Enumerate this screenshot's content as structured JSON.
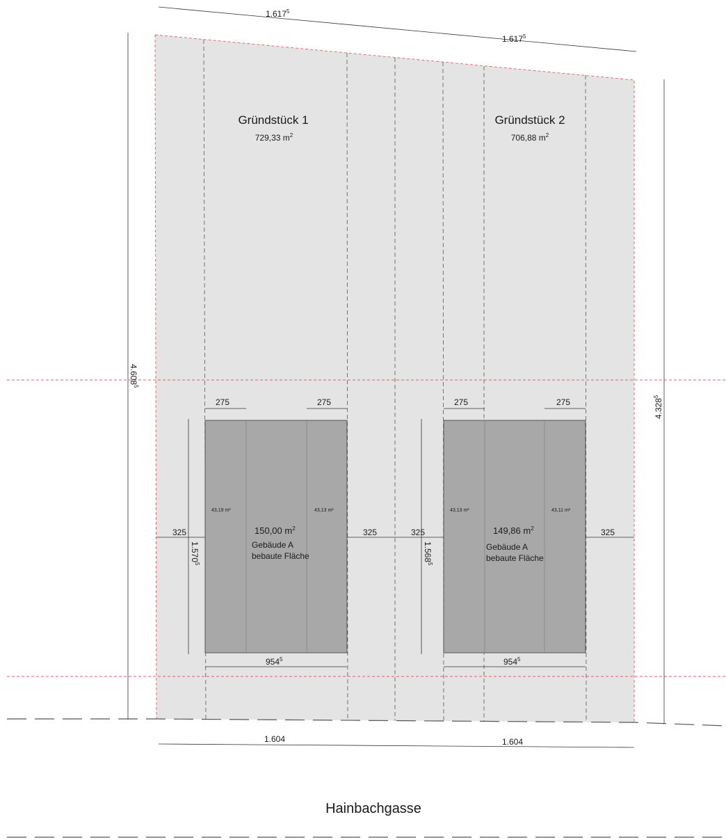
{
  "plot1": {
    "title": "Gründstück 1",
    "area": "729,33 m",
    "area_sup": "2",
    "building_area": "150,00 m",
    "building_area_sup": "2",
    "building_name": "Gebäude A",
    "building_desc": "bebaute Fläche",
    "left_room": "43,19 m²",
    "right_room": "43,13 m²",
    "setback_left": "275",
    "setback_right": "275",
    "side_left": "325",
    "side_right": "325",
    "building_depth": "1.570",
    "building_depth_sup": "5",
    "building_width": "954",
    "building_width_sup": "5",
    "top_width": "1.617",
    "top_width_sup": "5",
    "bottom_width": "1.604"
  },
  "plot2": {
    "title": "Gründstück 2",
    "area": "706,88 m",
    "area_sup": "2",
    "building_area": "149,86 m",
    "building_area_sup": "2",
    "building_name": "Gebäude A",
    "building_desc": "bebaute Fläche",
    "left_room": "43,13 m²",
    "right_room": "43,11 m²",
    "setback_left": "275",
    "setback_right": "275",
    "side_left": "325",
    "side_right": "325",
    "building_depth": "1.568",
    "building_depth_sup": "5",
    "building_width": "954",
    "building_width_sup": "5",
    "top_width": "1.617",
    "top_width_sup": "5",
    "bottom_width": "1.604"
  },
  "dims": {
    "left_height": "4.608",
    "left_height_sup": "5",
    "right_height": "4.328",
    "right_height_sup": "5"
  },
  "street": "Hainbachgasse",
  "colors": {
    "plot": "#e4e4e4",
    "building": "#a8a8a8",
    "boundary_red": "#e06060"
  }
}
